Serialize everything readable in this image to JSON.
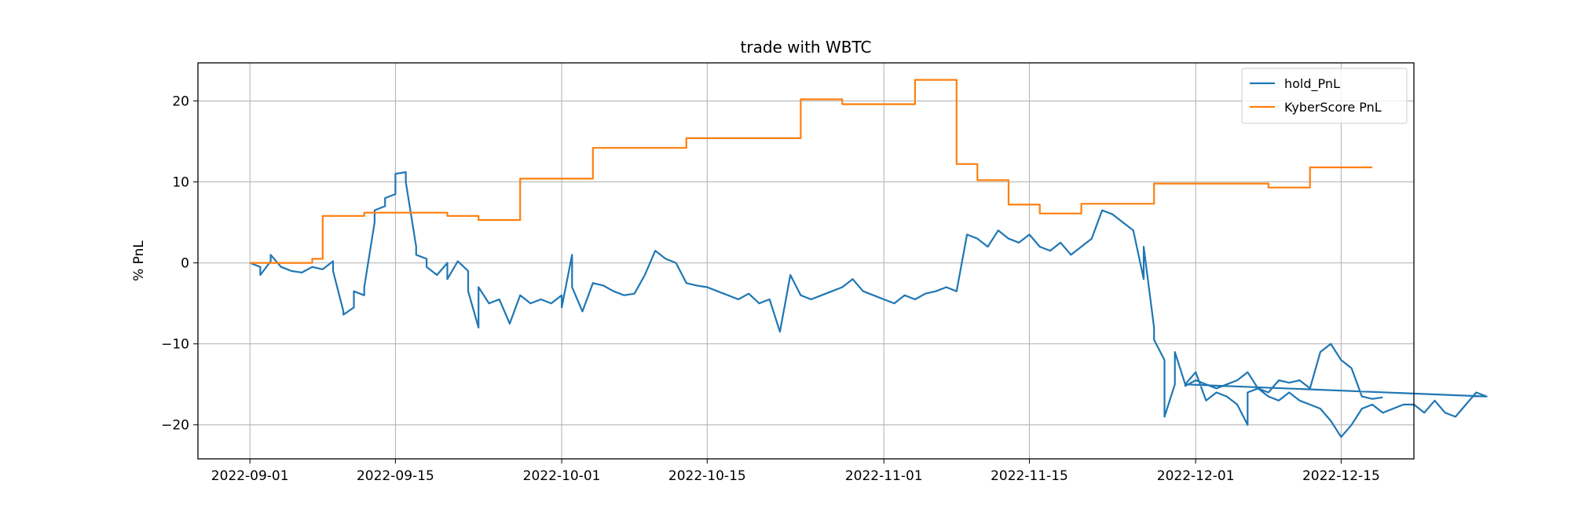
{
  "chart_data": {
    "type": "line",
    "title": "trade with WBTC",
    "xlabel": "",
    "ylabel": "% PnL",
    "x_type": "date",
    "xlim": [
      "2022-08-27",
      "2022-12-22"
    ],
    "ylim": [
      -24.2,
      24.7
    ],
    "x_ticks": [
      "2022-09-01",
      "2022-09-15",
      "2022-10-01",
      "2022-10-15",
      "2022-11-01",
      "2022-11-15",
      "2022-12-01",
      "2022-12-15"
    ],
    "y_ticks": [
      -20,
      -10,
      0,
      10,
      20
    ],
    "y_tick_labels": [
      "−20",
      "−10",
      "0",
      "10",
      "20"
    ],
    "grid": true,
    "legend_position": "top-right",
    "series": [
      {
        "name": "hold_PnL",
        "color": "#1f77b4",
        "points": [
          [
            "2022-09-01",
            0.0
          ],
          [
            "2022-09-02",
            -0.5
          ],
          [
            "2022-09-02",
            -1.5
          ],
          [
            "2022-09-03",
            0.2
          ],
          [
            "2022-09-03",
            1.0
          ],
          [
            "2022-09-04",
            -0.5
          ],
          [
            "2022-09-05",
            -1.0
          ],
          [
            "2022-09-06",
            -1.2
          ],
          [
            "2022-09-07",
            -0.5
          ],
          [
            "2022-09-08",
            -0.8
          ],
          [
            "2022-09-09",
            0.2
          ],
          [
            "2022-09-09",
            -1.0
          ],
          [
            "2022-09-10",
            -6.0
          ],
          [
            "2022-09-10",
            -6.4
          ],
          [
            "2022-09-11",
            -5.5
          ],
          [
            "2022-09-11",
            -3.5
          ],
          [
            "2022-09-12",
            -4.0
          ],
          [
            "2022-09-12",
            -3.0
          ],
          [
            "2022-09-13",
            5.0
          ],
          [
            "2022-09-13",
            6.5
          ],
          [
            "2022-09-14",
            7.0
          ],
          [
            "2022-09-14",
            8.0
          ],
          [
            "2022-09-15",
            8.5
          ],
          [
            "2022-09-15",
            11.0
          ],
          [
            "2022-09-16",
            11.2
          ],
          [
            "2022-09-16",
            10.0
          ],
          [
            "2022-09-17",
            2.0
          ],
          [
            "2022-09-17",
            1.0
          ],
          [
            "2022-09-18",
            0.5
          ],
          [
            "2022-09-18",
            -0.5
          ],
          [
            "2022-09-19",
            -1.5
          ],
          [
            "2022-09-20",
            0.0
          ],
          [
            "2022-09-20",
            -2.0
          ],
          [
            "2022-09-21",
            0.2
          ],
          [
            "2022-09-22",
            -1.0
          ],
          [
            "2022-09-22",
            -3.5
          ],
          [
            "2022-09-23",
            -8.0
          ],
          [
            "2022-09-23",
            -3.0
          ],
          [
            "2022-09-24",
            -5.0
          ],
          [
            "2022-09-25",
            -4.5
          ],
          [
            "2022-09-26",
            -7.5
          ],
          [
            "2022-09-27",
            -4.0
          ],
          [
            "2022-09-28",
            -5.0
          ],
          [
            "2022-09-29",
            -4.5
          ],
          [
            "2022-09-30",
            -5.0
          ],
          [
            "2022-10-01",
            -4.0
          ],
          [
            "2022-10-01",
            -5.5
          ],
          [
            "2022-10-02",
            1.0
          ],
          [
            "2022-10-02",
            -3.0
          ],
          [
            "2022-10-03",
            -6.0
          ],
          [
            "2022-10-04",
            -2.5
          ],
          [
            "2022-10-05",
            -2.8
          ],
          [
            "2022-10-06",
            -3.5
          ],
          [
            "2022-10-07",
            -4.0
          ],
          [
            "2022-10-08",
            -3.8
          ],
          [
            "2022-10-09",
            -1.5
          ],
          [
            "2022-10-10",
            1.5
          ],
          [
            "2022-10-11",
            0.5
          ],
          [
            "2022-10-12",
            0.0
          ],
          [
            "2022-10-13",
            -2.5
          ],
          [
            "2022-10-14",
            -2.8
          ],
          [
            "2022-10-15",
            -3.0
          ],
          [
            "2022-10-16",
            -3.5
          ],
          [
            "2022-10-17",
            -4.0
          ],
          [
            "2022-10-18",
            -4.5
          ],
          [
            "2022-10-19",
            -3.8
          ],
          [
            "2022-10-20",
            -5.0
          ],
          [
            "2022-10-21",
            -4.5
          ],
          [
            "2022-10-22",
            -8.5
          ],
          [
            "2022-10-23",
            -1.5
          ],
          [
            "2022-10-24",
            -4.0
          ],
          [
            "2022-10-25",
            -4.5
          ],
          [
            "2022-10-26",
            -4.0
          ],
          [
            "2022-10-27",
            -3.5
          ],
          [
            "2022-10-28",
            -3.0
          ],
          [
            "2022-10-29",
            -2.0
          ],
          [
            "2022-10-30",
            -3.5
          ],
          [
            "2022-10-31",
            -4.0
          ],
          [
            "2022-11-01",
            -4.5
          ],
          [
            "2022-11-02",
            -5.0
          ],
          [
            "2022-11-03",
            -4.0
          ],
          [
            "2022-11-04",
            -4.5
          ],
          [
            "2022-11-05",
            -3.8
          ],
          [
            "2022-11-06",
            -3.5
          ],
          [
            "2022-11-07",
            -3.0
          ],
          [
            "2022-11-08",
            -3.5
          ],
          [
            "2022-11-09",
            3.5
          ],
          [
            "2022-11-10",
            3.0
          ],
          [
            "2022-11-11",
            2.0
          ],
          [
            "2022-11-12",
            4.0
          ],
          [
            "2022-11-13",
            3.0
          ],
          [
            "2022-11-14",
            2.5
          ],
          [
            "2022-11-15",
            3.5
          ],
          [
            "2022-11-16",
            2.0
          ],
          [
            "2022-11-17",
            1.5
          ],
          [
            "2022-11-18",
            2.5
          ],
          [
            "2022-11-19",
            1.0
          ],
          [
            "2022-11-20",
            2.0
          ],
          [
            "2022-11-21",
            3.0
          ],
          [
            "2022-11-22",
            6.5
          ],
          [
            "2022-11-23",
            6.0
          ],
          [
            "2022-11-24",
            5.0
          ],
          [
            "2022-11-25",
            4.0
          ],
          [
            "2022-11-26",
            -2.0
          ],
          [
            "2022-11-26",
            2.0
          ],
          [
            "2022-11-27",
            -8.0
          ],
          [
            "2022-11-27",
            -9.5
          ],
          [
            "2022-11-28",
            -12.0
          ],
          [
            "2022-11-28",
            -19.0
          ],
          [
            "2022-11-29",
            -15.0
          ],
          [
            "2022-11-29",
            -11.0
          ],
          [
            "2022-11-30",
            -15.0
          ],
          [
            "2022-12-01",
            -13.5
          ],
          [
            "2022-12-02",
            -17.0
          ],
          [
            "2022-12-03",
            -16.0
          ],
          [
            "2022-12-04",
            -16.5
          ],
          [
            "2022-12-05",
            -17.5
          ],
          [
            "2022-12-06",
            -20.0
          ],
          [
            "2022-12-06",
            -16.0
          ],
          [
            "2022-12-07",
            -15.5
          ],
          [
            "2022-12-08",
            -16.5
          ],
          [
            "2022-12-09",
            -17.0
          ],
          [
            "2022-12-10",
            -16.0
          ],
          [
            "2022-12-11",
            -17.0
          ],
          [
            "2022-12-12",
            -17.5
          ],
          [
            "2022-12-13",
            -18.0
          ],
          [
            "2022-12-14",
            -19.5
          ],
          [
            "2022-12-15",
            -21.5
          ],
          [
            "2022-12-16",
            -20.0
          ],
          [
            "2022-12-17",
            -18.0
          ],
          [
            "2022-12-18",
            -17.5
          ],
          [
            "2022-12-19",
            -18.5
          ],
          [
            "2022-12-20",
            -18.0
          ],
          [
            "2022-12-21",
            -17.5
          ],
          [
            "2022-12-22",
            -17.5
          ],
          [
            "2022-12-23",
            -18.5
          ],
          [
            "2022-12-24",
            -17.0
          ],
          [
            "2022-12-25",
            -18.5
          ],
          [
            "2022-12-26",
            -19.0
          ],
          [
            "2022-12-27",
            -17.5
          ],
          [
            "2022-12-28",
            -16.0
          ],
          [
            "2022-12-29",
            -16.5
          ],
          [
            "2022-11-30",
            -15.0
          ],
          [
            "2022-11-30",
            -15.2
          ],
          [
            "2022-12-01",
            -14.5
          ],
          [
            "2022-12-02",
            -15.0
          ],
          [
            "2022-12-03",
            -15.5
          ],
          [
            "2022-12-04",
            -15.0
          ],
          [
            "2022-12-05",
            -14.5
          ],
          [
            "2022-12-06",
            -13.5
          ],
          [
            "2022-12-07",
            -15.5
          ],
          [
            "2022-12-08",
            -16.0
          ],
          [
            "2022-12-09",
            -14.5
          ],
          [
            "2022-12-10",
            -14.8
          ],
          [
            "2022-12-11",
            -14.5
          ],
          [
            "2022-12-12",
            -15.5
          ],
          [
            "2022-12-13",
            -11.0
          ],
          [
            "2022-12-14",
            -10.0
          ],
          [
            "2022-12-15",
            -12.0
          ],
          [
            "2022-12-16",
            -13.0
          ],
          [
            "2022-12-17",
            -16.5
          ],
          [
            "2022-12-18",
            -16.8
          ],
          [
            "2022-12-19",
            -16.6
          ]
        ]
      },
      {
        "name": "KyberScore PnL",
        "color": "#ff7f0e",
        "points": [
          [
            "2022-09-01",
            0.0
          ],
          [
            "2022-09-07",
            0.0
          ],
          [
            "2022-09-07",
            0.5
          ],
          [
            "2022-09-08",
            0.5
          ],
          [
            "2022-09-08",
            5.8
          ],
          [
            "2022-09-12",
            5.8
          ],
          [
            "2022-09-12",
            6.2
          ],
          [
            "2022-09-20",
            6.2
          ],
          [
            "2022-09-20",
            5.8
          ],
          [
            "2022-09-23",
            5.8
          ],
          [
            "2022-09-23",
            5.3
          ],
          [
            "2022-09-27",
            5.3
          ],
          [
            "2022-09-27",
            10.4
          ],
          [
            "2022-10-04",
            10.4
          ],
          [
            "2022-10-04",
            14.2
          ],
          [
            "2022-10-13",
            14.2
          ],
          [
            "2022-10-13",
            15.4
          ],
          [
            "2022-10-24",
            15.4
          ],
          [
            "2022-10-24",
            20.2
          ],
          [
            "2022-10-28",
            20.2
          ],
          [
            "2022-10-28",
            19.6
          ],
          [
            "2022-11-04",
            19.6
          ],
          [
            "2022-11-04",
            22.6
          ],
          [
            "2022-11-08",
            22.6
          ],
          [
            "2022-11-08",
            12.2
          ],
          [
            "2022-11-10",
            12.2
          ],
          [
            "2022-11-10",
            10.2
          ],
          [
            "2022-11-13",
            10.2
          ],
          [
            "2022-11-13",
            7.2
          ],
          [
            "2022-11-16",
            7.2
          ],
          [
            "2022-11-16",
            6.1
          ],
          [
            "2022-11-20",
            6.1
          ],
          [
            "2022-11-20",
            7.3
          ],
          [
            "2022-11-27",
            7.3
          ],
          [
            "2022-11-27",
            9.8
          ],
          [
            "2022-12-08",
            9.8
          ],
          [
            "2022-12-08",
            9.3
          ],
          [
            "2022-12-12",
            9.3
          ],
          [
            "2022-12-12",
            11.8
          ],
          [
            "2022-12-18",
            11.8
          ]
        ]
      }
    ]
  }
}
